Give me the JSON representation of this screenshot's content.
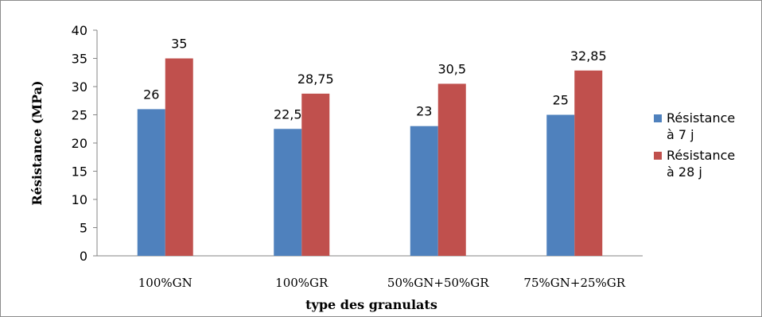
{
  "chart_data": {
    "type": "bar",
    "categories": [
      "100%GN",
      "100%GR",
      "50%GN+50%GR",
      "75%GN+25%GR"
    ],
    "series": [
      {
        "name": [
          "Résistance",
          "à 7 j"
        ],
        "values": [
          26,
          22.5,
          23,
          25
        ],
        "labels": [
          "26",
          "22,5",
          "23",
          "25"
        ],
        "color": "#4f81bd"
      },
      {
        "name": [
          "Résistance",
          "à 28 j"
        ],
        "values": [
          35,
          28.75,
          30.5,
          32.85
        ],
        "labels": [
          "35",
          "28,75",
          "30,5",
          "32,85"
        ],
        "color": "#c0504d"
      }
    ],
    "xlabel": "type des granulats",
    "ylabel": "Résistance (MPa)",
    "ylim": [
      0,
      40
    ],
    "yticks": [
      0,
      5,
      10,
      15,
      20,
      25,
      30,
      35,
      40
    ],
    "grid": false,
    "legend_position": "right"
  }
}
